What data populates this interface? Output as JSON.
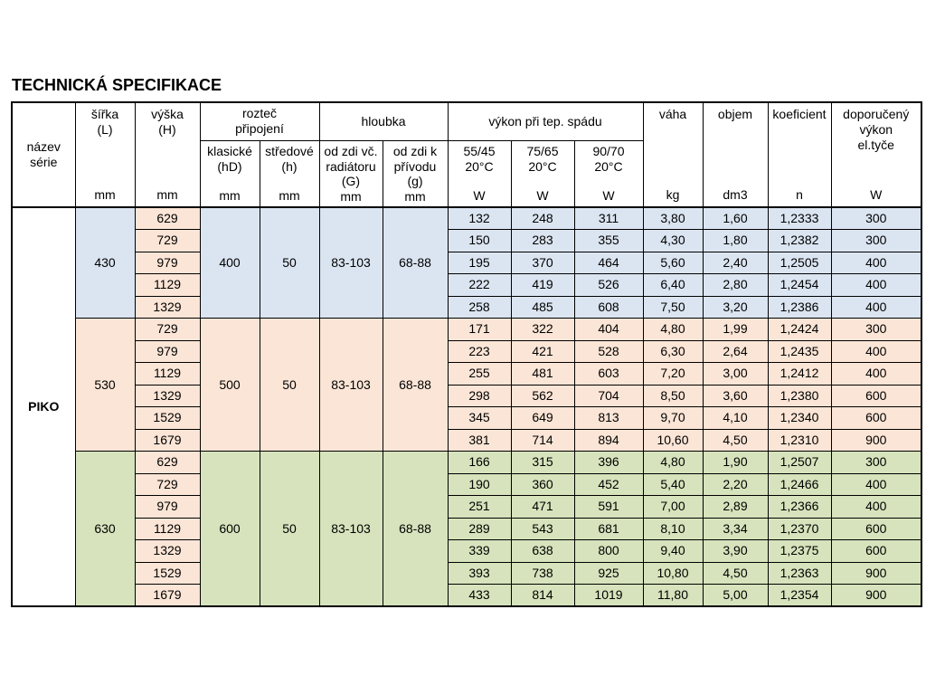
{
  "page": {
    "title": "TECHNICKÁ SPECIFIKACE"
  },
  "table": {
    "series_name": "PIKO",
    "header": {
      "nazev_serie": "název\nsérie",
      "sirka_label": "šířka\n(L)",
      "vyska_label": "výška\n(H)",
      "roztec_label": "rozteč\npřipojení",
      "klasicke_label": "klasické\n(hD)",
      "stredove_label": "středové\n(h)",
      "hloubka_label": "hloubka",
      "od_zdi_radiatoru_label": "od zdi vč.\nradiátoru\n(G)",
      "od_zdi_privodu_label": "od zdi k\npřívodu\n(g)",
      "vykon_label": "výkon při tep. spádu",
      "temp_55_45": "55/45\n20°C",
      "temp_75_65": "75/65\n20°C",
      "temp_90_70": "90/70\n20°C",
      "vaha_label": "váha",
      "objem_label": "objem",
      "koeficient_label": "koeficient",
      "doporuceny_label": "doporučený\nvýkon\nel.tyče",
      "unit_mm": "mm",
      "unit_w": "W",
      "unit_kg": "kg",
      "unit_dm3": "dm3",
      "unit_n": "n"
    },
    "colors": {
      "group_blue": "#dbe5f1",
      "group_pink": "#fbe5d6",
      "group_green": "#d6e3bc",
      "vyska_column": "#fbe5d6",
      "border": "#000000"
    },
    "groups": [
      {
        "bg": "#dbe5f1",
        "sirka": "430",
        "roztec_klasicke": "400",
        "roztec_stredove": "50",
        "od_zdi_radiatoru": "83-103",
        "od_zdi_privodu": "68-88",
        "rows": [
          {
            "vyska": "629",
            "vykon_55_45": "132",
            "vykon_75_65": "248",
            "vykon_90_70": "311",
            "vaha": "3,80",
            "objem": "1,60",
            "koeficient": "1,2333",
            "doporuceny_vykon": "300"
          },
          {
            "vyska": "729",
            "vykon_55_45": "150",
            "vykon_75_65": "283",
            "vykon_90_70": "355",
            "vaha": "4,30",
            "objem": "1,80",
            "koeficient": "1,2382",
            "doporuceny_vykon": "300"
          },
          {
            "vyska": "979",
            "vykon_55_45": "195",
            "vykon_75_65": "370",
            "vykon_90_70": "464",
            "vaha": "5,60",
            "objem": "2,40",
            "koeficient": "1,2505",
            "doporuceny_vykon": "400"
          },
          {
            "vyska": "1129",
            "vykon_55_45": "222",
            "vykon_75_65": "419",
            "vykon_90_70": "526",
            "vaha": "6,40",
            "objem": "2,80",
            "koeficient": "1,2454",
            "doporuceny_vykon": "400"
          },
          {
            "vyska": "1329",
            "vykon_55_45": "258",
            "vykon_75_65": "485",
            "vykon_90_70": "608",
            "vaha": "7,50",
            "objem": "3,20",
            "koeficient": "1,2386",
            "doporuceny_vykon": "400"
          }
        ]
      },
      {
        "bg": "#fbe5d6",
        "sirka": "530",
        "roztec_klasicke": "500",
        "roztec_stredove": "50",
        "od_zdi_radiatoru": "83-103",
        "od_zdi_privodu": "68-88",
        "rows": [
          {
            "vyska": "729",
            "vykon_55_45": "171",
            "vykon_75_65": "322",
            "vykon_90_70": "404",
            "vaha": "4,80",
            "objem": "1,99",
            "koeficient": "1,2424",
            "doporuceny_vykon": "300"
          },
          {
            "vyska": "979",
            "vykon_55_45": "223",
            "vykon_75_65": "421",
            "vykon_90_70": "528",
            "vaha": "6,30",
            "objem": "2,64",
            "koeficient": "1,2435",
            "doporuceny_vykon": "400"
          },
          {
            "vyska": "1129",
            "vykon_55_45": "255",
            "vykon_75_65": "481",
            "vykon_90_70": "603",
            "vaha": "7,20",
            "objem": "3,00",
            "koeficient": "1,2412",
            "doporuceny_vykon": "400"
          },
          {
            "vyska": "1329",
            "vykon_55_45": "298",
            "vykon_75_65": "562",
            "vykon_90_70": "704",
            "vaha": "8,50",
            "objem": "3,60",
            "koeficient": "1,2380",
            "doporuceny_vykon": "600"
          },
          {
            "vyska": "1529",
            "vykon_55_45": "345",
            "vykon_75_65": "649",
            "vykon_90_70": "813",
            "vaha": "9,70",
            "objem": "4,10",
            "koeficient": "1,2340",
            "doporuceny_vykon": "600"
          },
          {
            "vyska": "1679",
            "vykon_55_45": "381",
            "vykon_75_65": "714",
            "vykon_90_70": "894",
            "vaha": "10,60",
            "objem": "4,50",
            "koeficient": "1,2310",
            "doporuceny_vykon": "900"
          }
        ]
      },
      {
        "bg": "#d6e3bc",
        "sirka": "630",
        "roztec_klasicke": "600",
        "roztec_stredove": "50",
        "od_zdi_radiatoru": "83-103",
        "od_zdi_privodu": "68-88",
        "rows": [
          {
            "vyska": "629",
            "vykon_55_45": "166",
            "vykon_75_65": "315",
            "vykon_90_70": "396",
            "vaha": "4,80",
            "objem": "1,90",
            "koeficient": "1,2507",
            "doporuceny_vykon": "300"
          },
          {
            "vyska": "729",
            "vykon_55_45": "190",
            "vykon_75_65": "360",
            "vykon_90_70": "452",
            "vaha": "5,40",
            "objem": "2,20",
            "koeficient": "1,2466",
            "doporuceny_vykon": "400"
          },
          {
            "vyska": "979",
            "vykon_55_45": "251",
            "vykon_75_65": "471",
            "vykon_90_70": "591",
            "vaha": "7,00",
            "objem": "2,89",
            "koeficient": "1,2366",
            "doporuceny_vykon": "400"
          },
          {
            "vyska": "1129",
            "vykon_55_45": "289",
            "vykon_75_65": "543",
            "vykon_90_70": "681",
            "vaha": "8,10",
            "objem": "3,34",
            "koeficient": "1,2370",
            "doporuceny_vykon": "600"
          },
          {
            "vyska": "1329",
            "vykon_55_45": "339",
            "vykon_75_65": "638",
            "vykon_90_70": "800",
            "vaha": "9,40",
            "objem": "3,90",
            "koeficient": "1,2375",
            "doporuceny_vykon": "600"
          },
          {
            "vyska": "1529",
            "vykon_55_45": "393",
            "vykon_75_65": "738",
            "vykon_90_70": "925",
            "vaha": "10,80",
            "objem": "4,50",
            "koeficient": "1,2363",
            "doporuceny_vykon": "900"
          },
          {
            "vyska": "1679",
            "vykon_55_45": "433",
            "vykon_75_65": "814",
            "vykon_90_70": "1019",
            "vaha": "11,80",
            "objem": "5,00",
            "koeficient": "1,2354",
            "doporuceny_vykon": "900"
          }
        ]
      }
    ]
  }
}
